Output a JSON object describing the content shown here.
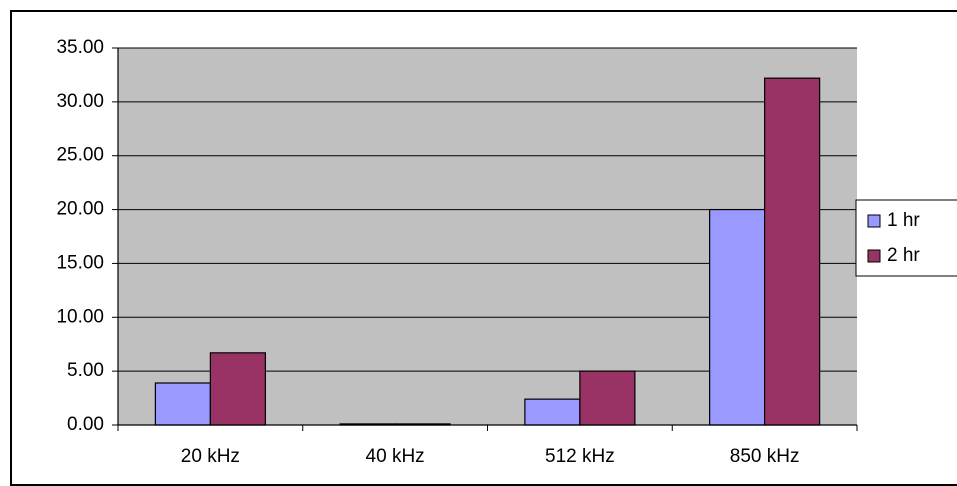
{
  "chart_data": {
    "type": "bar",
    "categories": [
      "20 kHz",
      "40 kHz",
      "512 kHz",
      "850 kHz"
    ],
    "series": [
      {
        "name": "1 hr",
        "color": "#9999ff",
        "values": [
          3.9,
          0.1,
          2.4,
          20.0
        ]
      },
      {
        "name": "2 hr",
        "color": "#993366",
        "values": [
          6.7,
          0.1,
          5.0,
          32.2
        ]
      }
    ],
    "ylim": [
      0,
      35
    ],
    "yticks": [
      {
        "value": 0,
        "label": "0.00"
      },
      {
        "value": 5,
        "label": "5.00"
      },
      {
        "value": 10,
        "label": "10.00"
      },
      {
        "value": 15,
        "label": "15.00"
      },
      {
        "value": 20,
        "label": "20.00"
      },
      {
        "value": 25,
        "label": "25.00"
      },
      {
        "value": 30,
        "label": "30.00"
      },
      {
        "value": 35,
        "label": "35.00"
      }
    ],
    "grid": true,
    "plot_background": "#c0c0c0",
    "legend": "right"
  }
}
